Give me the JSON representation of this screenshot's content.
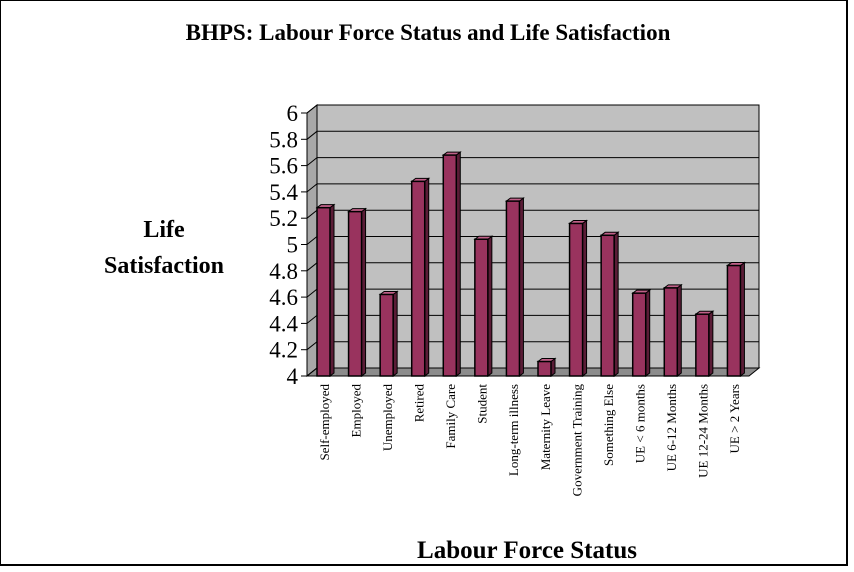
{
  "chart_data": {
    "type": "bar",
    "title": "BHPS: Labour Force Status and Life Satisfaction",
    "ylabel_lines": [
      "Life",
      "Satisfaction"
    ],
    "xlabel": "Labour Force Status",
    "ylim": [
      4,
      6
    ],
    "y_ticks": [
      "4",
      "4.2",
      "4.4",
      "4.6",
      "4.8",
      "5",
      "5.2",
      "5.4",
      "5.6",
      "5.8",
      "6"
    ],
    "grid": true,
    "legend": "none",
    "categories": [
      "Self-employed",
      "Employed",
      "Unemployed",
      "Retired",
      "Family Care",
      "Student",
      "Long-term illness",
      "Maternity Leave",
      "Government Training",
      "Something Else",
      "UE < 6 months",
      "UE 6-12 Months",
      "UE 12-24 Months",
      "UE > 2 Years"
    ],
    "values": [
      5.28,
      5.25,
      4.62,
      5.48,
      5.68,
      5.04,
      5.33,
      4.11,
      5.16,
      5.07,
      4.63,
      4.67,
      4.47,
      4.84
    ],
    "colors": {
      "bar_front": "#99335e",
      "bar_side": "#5a1c36",
      "bar_top": "#c06088",
      "bar_edge": "#000000",
      "wall": "#c0c0c0",
      "floor": "#8c8c8c",
      "grid": "#000000"
    }
  }
}
